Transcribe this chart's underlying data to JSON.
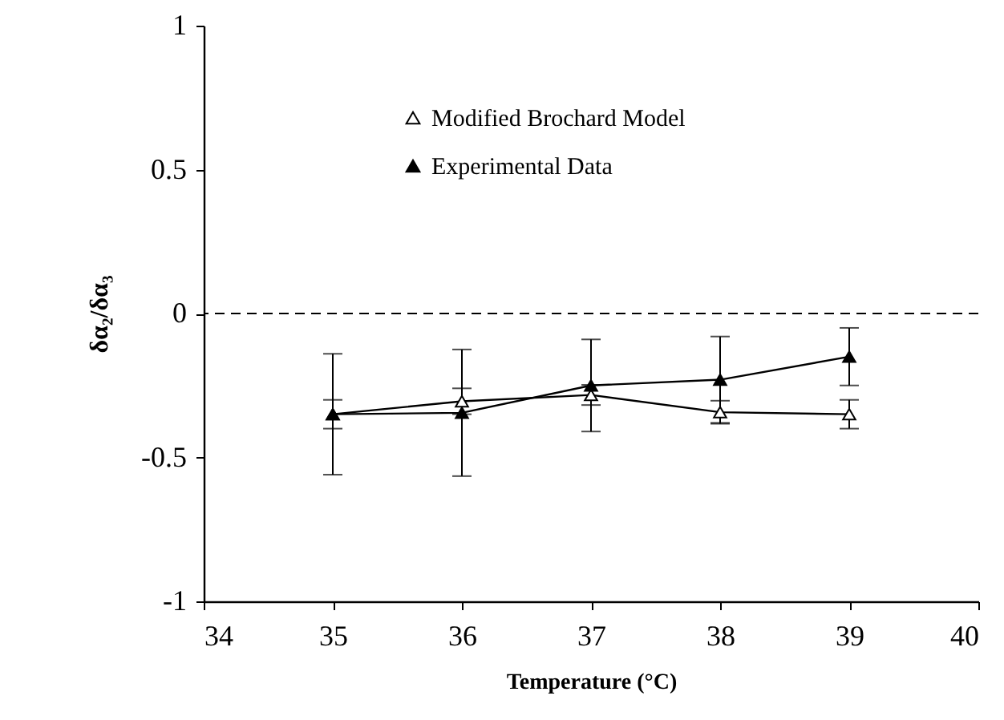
{
  "chart_data": {
    "type": "line",
    "xlabel": "Temperature (°C)",
    "ylabel": "δα₂/δα₃",
    "x": [
      35,
      36,
      37,
      38,
      39
    ],
    "series": [
      {
        "name": "Modified Brochard Model",
        "color": "#000000",
        "values": [
          -0.35,
          -0.305,
          -0.283,
          -0.343,
          -0.35
        ],
        "errors": [
          0.05,
          0.045,
          0.035,
          0.04,
          0.05
        ]
      },
      {
        "name": "Experimental Data",
        "color": "#000000",
        "values": [
          -0.35,
          -0.345,
          -0.25,
          -0.23,
          -0.15
        ],
        "errors": [
          0.21,
          0.22,
          0.16,
          0.15,
          0.1
        ]
      }
    ],
    "xlim": [
      34,
      40
    ],
    "xticks": [
      34,
      35,
      36,
      37,
      38,
      39,
      40
    ],
    "ylim": [
      -1,
      1
    ],
    "yticks": [
      -1,
      -0.5,
      0,
      0.5,
      1
    ],
    "ref_lines": [
      {
        "axis": "y",
        "value": 0,
        "line_style": "dashed"
      }
    ],
    "marker": "triangle",
    "line_style": "solid",
    "grid": false,
    "legend": "top"
  }
}
